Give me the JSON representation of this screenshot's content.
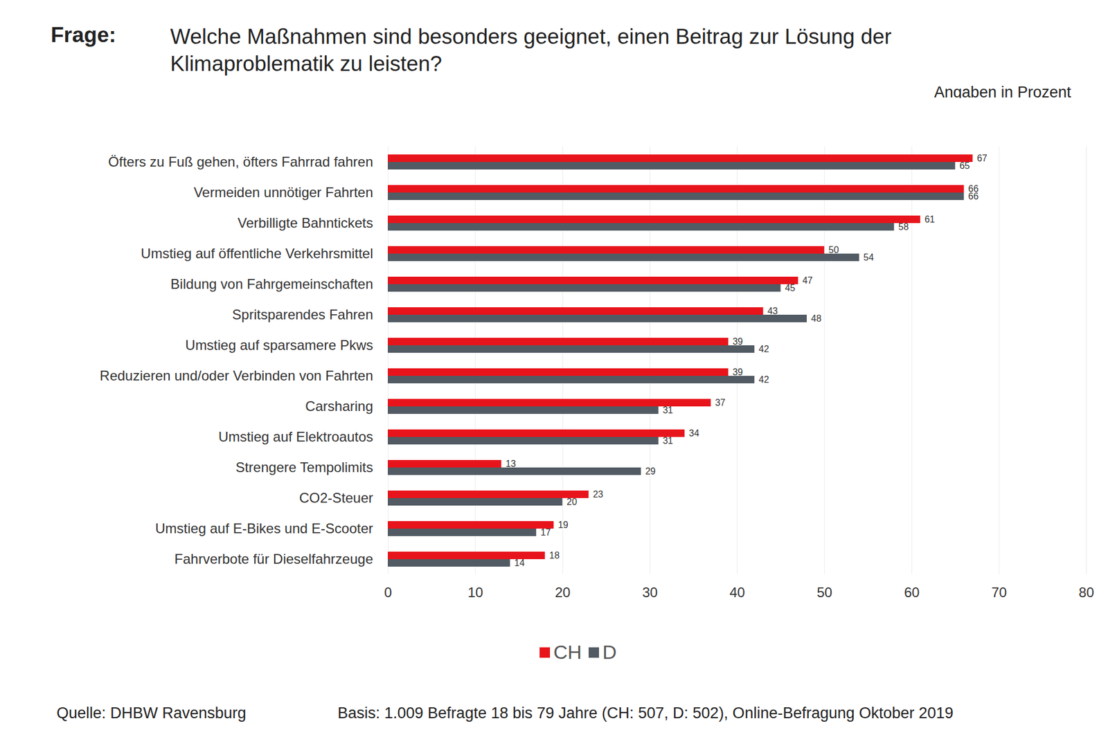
{
  "chart_data": {
    "type": "bar",
    "orientation": "horizontal",
    "title": "Welche Maßnahmen sind besonders geeignet, einen Beitrag zur Lösung der Klimaproblematik zu leisten?",
    "subtitle": "Angaben in Prozent",
    "annotations": {
      "question_label": "Frage:",
      "source": "Quelle: DHBW Ravensburg",
      "basis": "Basis: 1.009 Befragte 18 bis 79 Jahre (CH: 507, D: 502),  Online-Befragung Oktober 2019"
    },
    "categories": [
      "Öfters zu Fuß gehen, öfters Fahrrad fahren",
      "Vermeiden unnötiger Fahrten",
      "Verbilligte Bahntickets",
      "Umstieg auf öffentliche Verkehrsmittel",
      "Bildung von Fahrgemeinschaften",
      "Spritsparendes Fahren",
      "Umstieg auf sparsamere Pkws",
      "Reduzieren und/oder Verbinden von Fahrten",
      "Carsharing",
      "Umstieg auf Elektroautos",
      "Strengere Tempolimits",
      "CO2-Steuer",
      "Umstieg auf E-Bikes und E-Scooter",
      "Fahrverbote für Dieselfahrzeuge"
    ],
    "series": [
      {
        "name": "CH",
        "color": "#e8141c",
        "values": [
          67,
          66,
          61,
          50,
          47,
          43,
          39,
          39,
          37,
          34,
          13,
          23,
          19,
          18
        ]
      },
      {
        "name": "D",
        "color": "#525b63",
        "values": [
          65,
          66,
          58,
          54,
          45,
          48,
          42,
          42,
          31,
          31,
          29,
          20,
          17,
          14
        ]
      }
    ],
    "xlim": [
      0,
      80
    ],
    "xticks": [
      0,
      10,
      20,
      30,
      40,
      50,
      60,
      70,
      80
    ],
    "grid": true,
    "legend": "bottom",
    "data_labels": true
  }
}
